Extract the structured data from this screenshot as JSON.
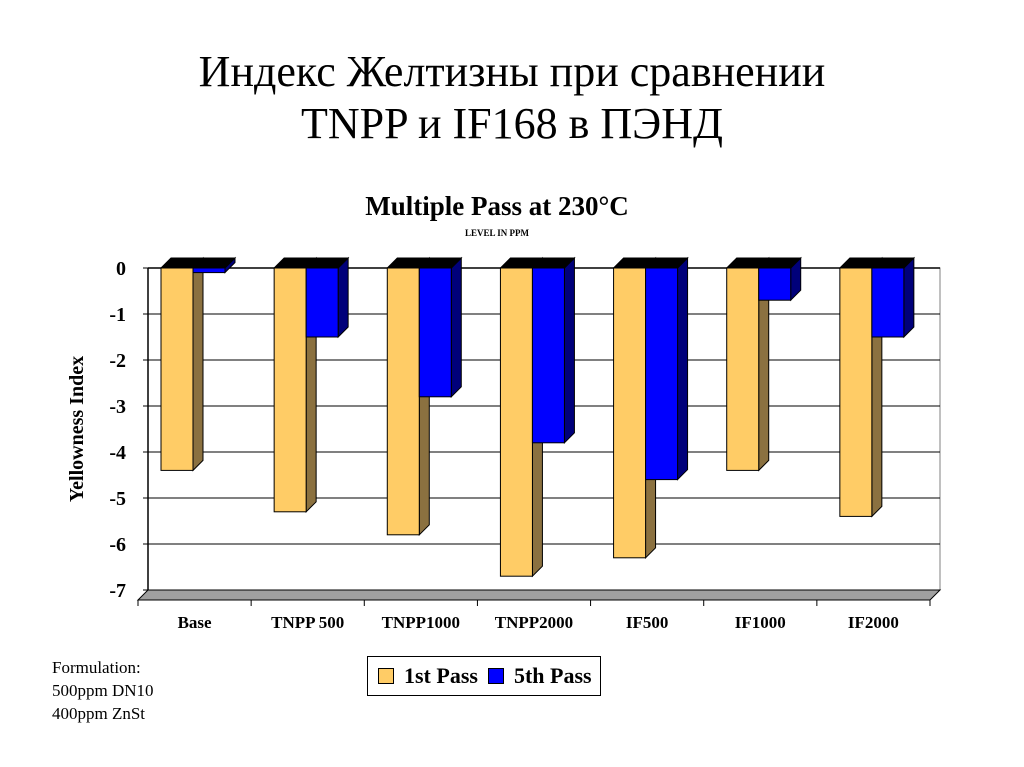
{
  "slide": {
    "title_line1": "Индекс Желтизны при сравнении",
    "title_line2": "TNPP и IF168 в ПЭНД"
  },
  "formulation": {
    "line1": "Formulation:",
    "line2": "500ppm DN10",
    "line3": "400ppm ZnSt"
  },
  "colors": {
    "pass1": "#FFCC66",
    "pass5": "#0000FF",
    "pass1_side": "#8B7140",
    "pass5_side": "#00007A"
  },
  "chart_data": {
    "type": "bar",
    "title": "Multiple Pass at 230°C",
    "subtitle": "LEVEL IN PPM",
    "xlabel": "",
    "ylabel": "Yellowness Index",
    "ylim": [
      -7,
      0
    ],
    "yticks": [
      "0",
      "-1",
      "-2",
      "-3",
      "-4",
      "-5",
      "-6",
      "-7"
    ],
    "grid": true,
    "legend_position": "bottom",
    "categories": [
      "Base",
      "TNPP 500",
      "TNPP1000",
      "TNPP2000",
      "IF500",
      "IF1000",
      "IF2000"
    ],
    "series": [
      {
        "name": "1st Pass",
        "values": [
          -4.4,
          -5.3,
          -5.8,
          -6.7,
          -6.3,
          -4.4,
          -5.4
        ]
      },
      {
        "name": "5th Pass",
        "values": [
          -0.1,
          -1.5,
          -2.8,
          -3.8,
          -4.6,
          -0.7,
          -1.5
        ]
      }
    ]
  }
}
